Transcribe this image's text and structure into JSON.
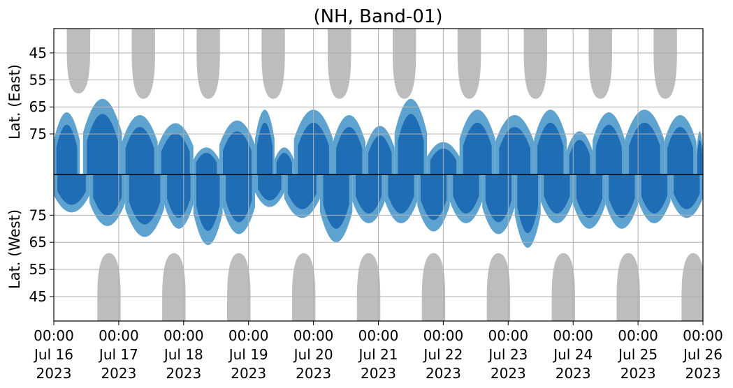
{
  "chart_data": {
    "type": "heatmap",
    "title": "(NH, Band-01)",
    "ylabel_top": "Lat. (East)",
    "ylabel_bottom": "Lat. (West)",
    "x_ticks": [
      {
        "day": 0,
        "time": "00:00",
        "date": "Jul 16",
        "year": "2023"
      },
      {
        "day": 1,
        "time": "00:00",
        "date": "Jul 17",
        "year": "2023"
      },
      {
        "day": 2,
        "time": "00:00",
        "date": "Jul 18",
        "year": "2023"
      },
      {
        "day": 3,
        "time": "00:00",
        "date": "Jul 19",
        "year": "2023"
      },
      {
        "day": 4,
        "time": "00:00",
        "date": "Jul 20",
        "year": "2023"
      },
      {
        "day": 5,
        "time": "00:00",
        "date": "Jul 21",
        "year": "2023"
      },
      {
        "day": 6,
        "time": "00:00",
        "date": "Jul 22",
        "year": "2023"
      },
      {
        "day": 7,
        "time": "00:00",
        "date": "Jul 23",
        "year": "2023"
      },
      {
        "day": 8,
        "time": "00:00",
        "date": "Jul 24",
        "year": "2023"
      },
      {
        "day": 9,
        "time": "00:00",
        "date": "Jul 25",
        "year": "2023"
      },
      {
        "day": 10,
        "time": "00:00",
        "date": "Jul 26",
        "year": "2023"
      }
    ],
    "xlim": [
      "2023-07-16 00:00",
      "2023-07-26 00:00"
    ],
    "y_ticks_east": [
      45,
      55,
      65,
      75
    ],
    "y_ticks_west": [
      75,
      65,
      55,
      45
    ],
    "ylim_east": [
      90,
      36
    ],
    "ylim_west": [
      90,
      36
    ],
    "grid": true,
    "colors": {
      "strong": "#1f6eb5",
      "weak": "#5ea3d0",
      "no_data": "#bdbdbd",
      "grid": "#b0b0b0",
      "divider": "#000000"
    },
    "no_data_regions": [
      {
        "side": "east",
        "center_day": 0.38,
        "half_width_days": 0.18,
        "min_lat": 60
      },
      {
        "side": "east",
        "center_day": 1.38,
        "half_width_days": 0.18,
        "min_lat": 62
      },
      {
        "side": "east",
        "center_day": 2.38,
        "half_width_days": 0.18,
        "min_lat": 62
      },
      {
        "side": "east",
        "center_day": 3.38,
        "half_width_days": 0.18,
        "min_lat": 62
      },
      {
        "side": "east",
        "center_day": 4.4,
        "half_width_days": 0.18,
        "min_lat": 62
      },
      {
        "side": "east",
        "center_day": 5.4,
        "half_width_days": 0.18,
        "min_lat": 62
      },
      {
        "side": "east",
        "center_day": 6.4,
        "half_width_days": 0.18,
        "min_lat": 62
      },
      {
        "side": "east",
        "center_day": 7.42,
        "half_width_days": 0.18,
        "min_lat": 62
      },
      {
        "side": "east",
        "center_day": 8.42,
        "half_width_days": 0.18,
        "min_lat": 62
      },
      {
        "side": "east",
        "center_day": 9.42,
        "half_width_days": 0.18,
        "min_lat": 62
      },
      {
        "side": "west",
        "center_day": 0.85,
        "half_width_days": 0.18,
        "min_lat": 61
      },
      {
        "side": "west",
        "center_day": 1.85,
        "half_width_days": 0.18,
        "min_lat": 61
      },
      {
        "side": "west",
        "center_day": 2.85,
        "half_width_days": 0.18,
        "min_lat": 61
      },
      {
        "side": "west",
        "center_day": 3.85,
        "half_width_days": 0.18,
        "min_lat": 61
      },
      {
        "side": "west",
        "center_day": 4.85,
        "half_width_days": 0.18,
        "min_lat": 61
      },
      {
        "side": "west",
        "center_day": 5.85,
        "half_width_days": 0.18,
        "min_lat": 61
      },
      {
        "side": "west",
        "center_day": 6.85,
        "half_width_days": 0.18,
        "min_lat": 61
      },
      {
        "side": "west",
        "center_day": 7.85,
        "half_width_days": 0.18,
        "min_lat": 61
      },
      {
        "side": "west",
        "center_day": 8.85,
        "half_width_days": 0.18,
        "min_lat": 61
      },
      {
        "side": "west",
        "center_day": 9.85,
        "half_width_days": 0.18,
        "min_lat": 61
      }
    ],
    "coverage_blobs": [
      {
        "side": "east",
        "start_day": 0.0,
        "end_day": 0.4,
        "min_lat": 67
      },
      {
        "side": "east",
        "start_day": 0.45,
        "end_day": 1.05,
        "min_lat": 62
      },
      {
        "side": "east",
        "start_day": 1.05,
        "end_day": 1.6,
        "min_lat": 68
      },
      {
        "side": "east",
        "start_day": 1.6,
        "end_day": 2.15,
        "min_lat": 71
      },
      {
        "side": "east",
        "start_day": 2.15,
        "end_day": 2.55,
        "min_lat": 80
      },
      {
        "side": "east",
        "start_day": 2.55,
        "end_day": 3.1,
        "min_lat": 70
      },
      {
        "side": "east",
        "start_day": 3.1,
        "end_day": 3.4,
        "min_lat": 66
      },
      {
        "side": "east",
        "start_day": 3.4,
        "end_day": 3.7,
        "min_lat": 80
      },
      {
        "side": "east",
        "start_day": 3.7,
        "end_day": 4.3,
        "min_lat": 66
      },
      {
        "side": "east",
        "start_day": 4.3,
        "end_day": 4.8,
        "min_lat": 68
      },
      {
        "side": "east",
        "start_day": 4.8,
        "end_day": 5.25,
        "min_lat": 72
      },
      {
        "side": "east",
        "start_day": 5.25,
        "end_day": 5.75,
        "min_lat": 62
      },
      {
        "side": "east",
        "start_day": 5.75,
        "end_day": 6.25,
        "min_lat": 78
      },
      {
        "side": "east",
        "start_day": 6.25,
        "end_day": 6.8,
        "min_lat": 66
      },
      {
        "side": "east",
        "start_day": 6.8,
        "end_day": 7.4,
        "min_lat": 68
      },
      {
        "side": "east",
        "start_day": 7.4,
        "end_day": 7.9,
        "min_lat": 66
      },
      {
        "side": "east",
        "start_day": 7.9,
        "end_day": 8.3,
        "min_lat": 74
      },
      {
        "side": "east",
        "start_day": 8.3,
        "end_day": 8.8,
        "min_lat": 67
      },
      {
        "side": "east",
        "start_day": 8.8,
        "end_day": 9.4,
        "min_lat": 66
      },
      {
        "side": "east",
        "start_day": 9.4,
        "end_day": 9.9,
        "min_lat": 68
      },
      {
        "side": "east",
        "start_day": 9.9,
        "end_day": 10.0,
        "min_lat": 74
      },
      {
        "side": "west",
        "start_day": 0.0,
        "end_day": 0.55,
        "min_lat": 76
      },
      {
        "side": "west",
        "start_day": 0.55,
        "end_day": 1.1,
        "min_lat": 71
      },
      {
        "side": "west",
        "start_day": 1.1,
        "end_day": 1.7,
        "min_lat": 67
      },
      {
        "side": "west",
        "start_day": 1.7,
        "end_day": 2.15,
        "min_lat": 70
      },
      {
        "side": "west",
        "start_day": 2.15,
        "end_day": 2.6,
        "min_lat": 64
      },
      {
        "side": "west",
        "start_day": 2.6,
        "end_day": 3.1,
        "min_lat": 68
      },
      {
        "side": "west",
        "start_day": 3.1,
        "end_day": 3.55,
        "min_lat": 78
      },
      {
        "side": "west",
        "start_day": 3.55,
        "end_day": 4.1,
        "min_lat": 74
      },
      {
        "side": "west",
        "start_day": 4.1,
        "end_day": 4.6,
        "min_lat": 65
      },
      {
        "side": "west",
        "start_day": 4.6,
        "end_day": 5.1,
        "min_lat": 72
      },
      {
        "side": "west",
        "start_day": 5.1,
        "end_day": 5.6,
        "min_lat": 72
      },
      {
        "side": "west",
        "start_day": 5.6,
        "end_day": 6.1,
        "min_lat": 69
      },
      {
        "side": "west",
        "start_day": 6.1,
        "end_day": 6.6,
        "min_lat": 72
      },
      {
        "side": "west",
        "start_day": 6.6,
        "end_day": 7.1,
        "min_lat": 68
      },
      {
        "side": "west",
        "start_day": 7.1,
        "end_day": 7.5,
        "min_lat": 63
      },
      {
        "side": "west",
        "start_day": 7.5,
        "end_day": 8.0,
        "min_lat": 72
      },
      {
        "side": "west",
        "start_day": 8.0,
        "end_day": 8.5,
        "min_lat": 70
      },
      {
        "side": "west",
        "start_day": 8.5,
        "end_day": 9.0,
        "min_lat": 70
      },
      {
        "side": "west",
        "start_day": 9.0,
        "end_day": 9.5,
        "min_lat": 72
      },
      {
        "side": "west",
        "start_day": 9.5,
        "end_day": 10.0,
        "min_lat": 74
      }
    ]
  }
}
